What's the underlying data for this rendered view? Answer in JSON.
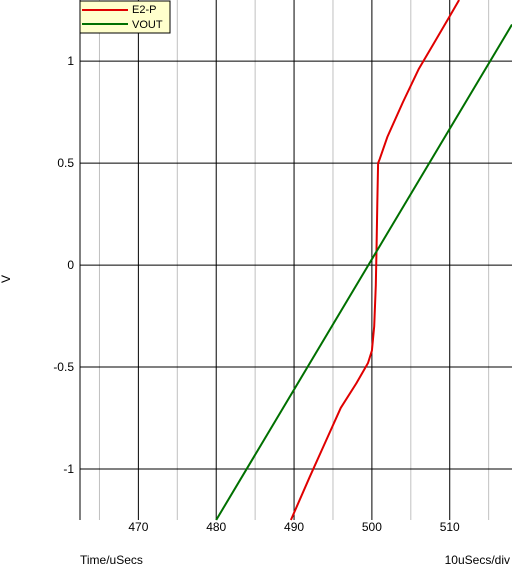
{
  "chart_data": {
    "type": "line",
    "title": "",
    "xlabel": "Time/uSecs",
    "ylabel": "V",
    "scale_label": "10uSecs/div",
    "xlim": [
      462.5,
      518
    ],
    "ylim": [
      -1.25,
      1.3
    ],
    "x_ticks": [
      470,
      480,
      490,
      500,
      510
    ],
    "x_tick_labels": [
      "470",
      "480",
      "490",
      "500",
      "510"
    ],
    "y_ticks": [
      1,
      0.5,
      0,
      -0.5,
      -1
    ],
    "y_tick_labels": [
      "1",
      "0.5",
      "0",
      "-0.5",
      "-1"
    ],
    "x_minor_ticks": [
      465,
      475,
      485,
      495,
      505,
      515
    ],
    "grid": true,
    "legend": {
      "position": "top-left"
    },
    "series": [
      {
        "name": "E2-P",
        "color": "#e00000",
        "x": [
          489.6,
          492.0,
          494.0,
          496.0,
          498.0,
          499.5,
          500.0,
          500.3,
          500.5,
          500.6,
          500.7,
          500.8,
          500.9,
          501.0,
          502.0,
          504.0,
          506.0,
          508.0,
          510.0,
          511.2
        ],
        "y": [
          -1.25,
          -1.04,
          -0.87,
          -0.7,
          -0.58,
          -0.48,
          -0.42,
          -0.3,
          -0.1,
          0.1,
          0.3,
          0.5,
          0.51,
          0.52,
          0.63,
          0.8,
          0.96,
          1.09,
          1.22,
          1.3
        ]
      },
      {
        "name": "VOUT",
        "color": "#007000",
        "x": [
          480.0,
          518.0
        ],
        "y": [
          -1.25,
          1.18
        ]
      }
    ]
  }
}
